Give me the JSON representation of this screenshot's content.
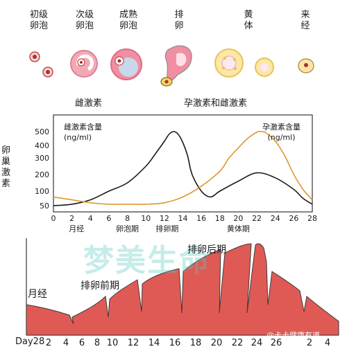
{
  "stages": [
    {
      "label": "初级\n卵泡"
    },
    {
      "label": "次级\n卵泡"
    },
    {
      "label": "成熟\n卵泡"
    },
    {
      "label": "排\n卵"
    },
    {
      "label": "黄\n体"
    },
    {
      "label": "来\n经"
    }
  ],
  "hormone_labels": {
    "left": "雌激素",
    "right": "孕激素和雌激素"
  },
  "chart_data": {
    "type": "line",
    "ylabel": "卵巢激素",
    "x_ticks": [
      0,
      2,
      4,
      6,
      8,
      10,
      12,
      14,
      16,
      18,
      20,
      22,
      24,
      26,
      28
    ],
    "y_ticks": [
      50,
      100,
      200,
      300,
      400,
      500
    ],
    "xlim": [
      0,
      28
    ],
    "ylim": [
      0,
      520
    ],
    "phases": [
      "月经",
      "卵泡期",
      "排卵期",
      "黄体期"
    ],
    "series": [
      {
        "name": "雌激素含量\n(ng/ml)",
        "color": "#1a1a1a",
        "x": [
          0,
          2,
          4,
          6,
          8,
          10,
          11,
          12,
          12.5,
          13,
          13.5,
          14,
          14.5,
          15,
          16,
          17,
          18,
          20,
          22,
          24,
          26,
          27,
          28
        ],
        "y": [
          50,
          55,
          70,
          100,
          150,
          250,
          330,
          430,
          480,
          500,
          480,
          420,
          320,
          200,
          100,
          80,
          100,
          160,
          210,
          180,
          110,
          75,
          55
        ]
      },
      {
        "name": "孕激素含量\n(ng/ml)",
        "color": "#e0962c",
        "x": [
          0,
          2,
          4,
          6,
          8,
          10,
          12,
          14,
          16,
          18,
          19,
          20,
          21,
          22,
          22.5,
          23,
          24,
          25,
          26,
          27,
          28
        ],
        "y": [
          80,
          70,
          60,
          55,
          55,
          55,
          60,
          80,
          130,
          220,
          300,
          380,
          450,
          495,
          500,
          490,
          430,
          320,
          200,
          110,
          70
        ]
      }
    ]
  },
  "bottom": {
    "day_prefix": "Day28",
    "ticks": [
      "2",
      "4",
      "6",
      "8",
      "10",
      "12",
      "14",
      "16",
      "18",
      "20",
      "22",
      "24",
      "26",
      "2",
      "4"
    ],
    "labels": [
      "月经",
      "排卵前期",
      "排卵后期"
    ],
    "color": "#e05a55"
  },
  "watermark": "梦美生命",
  "credit": "@卡卡健康有道"
}
